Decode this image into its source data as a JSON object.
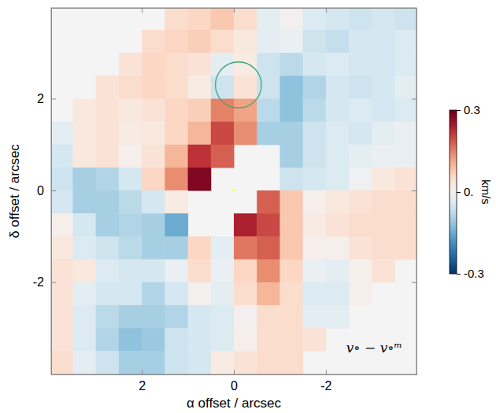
{
  "chart_data": {
    "type": "heatmap",
    "xlabel": "α offset / arcsec",
    "ylabel": "δ offset / arcsec",
    "annotation": "v∘ − v∘ᵐ",
    "xlim": [
      3.97,
      -3.97
    ],
    "ylim": [
      -4.01,
      3.98
    ],
    "xticks": [
      2,
      0,
      -2
    ],
    "yticks": [
      -2,
      0,
      2
    ],
    "heatmap": {
      "x": [
        3.75,
        3.25,
        2.75,
        2.25,
        1.75,
        1.25,
        0.75,
        0.25,
        -0.25,
        -0.75,
        -1.25,
        -1.75,
        -2.25,
        -2.75,
        -3.25,
        -3.75
      ],
      "y": [
        3.75,
        3.25,
        2.75,
        2.25,
        1.75,
        1.25,
        0.75,
        0.25,
        -0.25,
        -0.75,
        -1.25,
        -1.75,
        -2.25,
        -2.75,
        -3.25,
        -3.75
      ],
      "values": [
        [
          null,
          null,
          null,
          null,
          null,
          0.05,
          0.06,
          0.08,
          0.05,
          -0.03,
          0,
          -0.04,
          -0.05,
          -0.06,
          -0.05,
          -0.06
        ],
        [
          null,
          null,
          null,
          null,
          0.05,
          0.06,
          0.07,
          0.05,
          0.03,
          -0.03,
          -0.02,
          -0.06,
          -0.07,
          -0.05,
          -0.05,
          -0.04
        ],
        [
          null,
          null,
          null,
          0.04,
          0.06,
          0.05,
          0.04,
          -0.03,
          0.02,
          -0.06,
          -0.08,
          -0.05,
          -0.04,
          -0.05,
          -0.05,
          -0.04
        ],
        [
          null,
          null,
          0.04,
          0.05,
          0.06,
          0.05,
          0.02,
          -0.06,
          0.04,
          -0.06,
          -0.12,
          -0.09,
          -0.05,
          -0.06,
          -0.05,
          -0.03
        ],
        [
          null,
          0.03,
          0.04,
          0.03,
          0.04,
          0.06,
          0.07,
          0.15,
          0.12,
          -0.08,
          -0.12,
          -0.08,
          -0.05,
          -0.04,
          -0.05,
          -0.04
        ],
        [
          -0.03,
          0.03,
          0.04,
          0.02,
          0.03,
          0.06,
          0.1,
          0.2,
          0.14,
          -0.1,
          -0.1,
          -0.06,
          -0.04,
          -0.05,
          -0.03,
          -0.02
        ],
        [
          -0.05,
          0.03,
          0.04,
          0.01,
          0.04,
          0.1,
          0.22,
          0.18,
          null,
          null,
          -0.1,
          -0.06,
          -0.04,
          -0.03,
          -0.02,
          -0.02
        ],
        [
          -0.06,
          -0.1,
          -0.09,
          -0.05,
          0.06,
          0.14,
          0.28,
          null,
          null,
          null,
          -0.06,
          -0.05,
          -0.04,
          -0.01,
          0.03,
          0.04
        ],
        [
          -0.05,
          -0.1,
          -0.1,
          -0.08,
          -0.05,
          0.02,
          null,
          null,
          null,
          0.18,
          0.08,
          0.01,
          0.03,
          0.04,
          0.05,
          0.05
        ],
        [
          0.01,
          -0.05,
          -0.1,
          -0.09,
          -0.1,
          -0.15,
          null,
          null,
          0.24,
          0.2,
          0.08,
          0.02,
          0.04,
          0.05,
          0.05,
          0.05
        ],
        [
          0.03,
          -0.04,
          -0.06,
          -0.08,
          -0.1,
          -0.1,
          0.06,
          -0.03,
          0.16,
          0.18,
          0.08,
          0.01,
          0.01,
          0.04,
          0.05,
          0.05
        ],
        [
          0.04,
          0.03,
          -0.04,
          -0.05,
          -0.05,
          -0.02,
          0.05,
          -0.02,
          0.06,
          0.14,
          0.06,
          -0.02,
          -0.03,
          0.01,
          0.04,
          null
        ],
        [
          0.04,
          -0.03,
          -0.05,
          -0.05,
          -0.09,
          -0.05,
          0,
          -0.03,
          0.05,
          0.1,
          0.05,
          -0.04,
          -0.04,
          0.01,
          null,
          null
        ],
        [
          0.04,
          -0.04,
          -0.08,
          -0.1,
          -0.1,
          -0.09,
          -0.05,
          -0.04,
          0,
          0.05,
          0.05,
          -0.03,
          -0.03,
          null,
          null,
          null
        ],
        [
          0.04,
          -0.04,
          -0.09,
          -0.12,
          -0.11,
          -0.06,
          -0.05,
          -0.04,
          0.01,
          0.05,
          0.05,
          0.04,
          null,
          null,
          null,
          null
        ],
        [
          0.05,
          -0.03,
          -0.06,
          -0.1,
          -0.1,
          -0.06,
          -0.05,
          0.02,
          0.04,
          0.05,
          0.05,
          null,
          null,
          null,
          null,
          null
        ]
      ]
    },
    "colorbar": {
      "range": [
        -0.3,
        0.3
      ],
      "ticks": [
        -0.3,
        {
          "value": 0,
          "label": "0."
        },
        0.3
      ],
      "label": "km/s"
    },
    "region_circle": {
      "x": -0.1,
      "y": 2.3,
      "r": 0.5,
      "color": "#3aa57a"
    },
    "center": {
      "x": 0,
      "y": 0,
      "color": "#ffff33"
    }
  }
}
